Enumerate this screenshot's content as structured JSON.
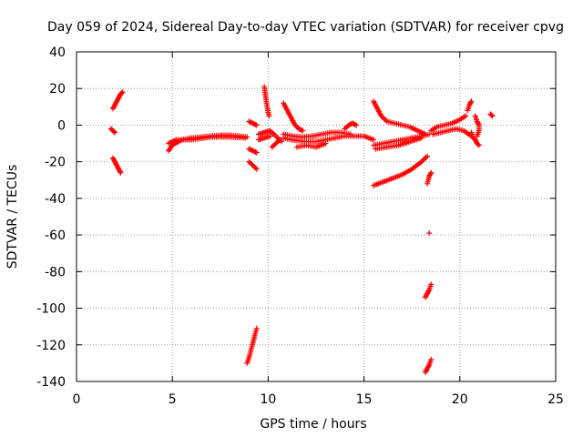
{
  "chart_data": {
    "type": "scatter",
    "title": "Day 059 of 2024, Sidereal Day-to-day VTEC variation (SDTVAR) for receiver cpvg",
    "xlabel": "GPS time / hours",
    "ylabel": "SDTVAR / TECUs",
    "xlim": [
      0,
      25
    ],
    "ylim": [
      -140,
      40
    ],
    "xticks": [
      "0",
      "5",
      "10",
      "15",
      "20",
      "25"
    ],
    "yticks": [
      "40",
      "20",
      "0",
      "-20",
      "-40",
      "-60",
      "-80",
      "-100",
      "-120",
      "-140"
    ],
    "grid": true,
    "marker": "plus",
    "color": "#ff0000",
    "segments": [
      [
        [
          1.8,
          -2
        ],
        [
          1.9,
          -3
        ],
        [
          2.0,
          -4
        ]
      ],
      [
        [
          1.9,
          9
        ],
        [
          2.0,
          11
        ],
        [
          2.1,
          13
        ],
        [
          2.2,
          15
        ],
        [
          2.3,
          17
        ],
        [
          2.4,
          18
        ]
      ],
      [
        [
          1.9,
          -18
        ],
        [
          2.0,
          -20
        ],
        [
          2.1,
          -22
        ],
        [
          2.2,
          -24
        ],
        [
          2.3,
          -26
        ]
      ],
      [
        [
          4.8,
          -14
        ],
        [
          5.0,
          -11
        ],
        [
          5.5,
          -8
        ],
        [
          6.0,
          -7
        ],
        [
          6.5,
          -6.5
        ],
        [
          7.0,
          -6
        ],
        [
          7.5,
          -5.5
        ],
        [
          8.0,
          -5.5
        ],
        [
          8.5,
          -6
        ],
        [
          8.9,
          -6.5
        ]
      ],
      [
        [
          4.8,
          -10
        ],
        [
          5.2,
          -8
        ],
        [
          6.0,
          -8
        ],
        [
          7.0,
          -6.5
        ],
        [
          8.0,
          -6.5
        ],
        [
          8.8,
          -7
        ]
      ],
      [
        [
          9.0,
          -20
        ],
        [
          9.2,
          -22
        ],
        [
          9.4,
          -24
        ]
      ],
      [
        [
          9.0,
          2
        ],
        [
          9.2,
          1
        ],
        [
          9.4,
          0
        ]
      ],
      [
        [
          9.0,
          -13
        ],
        [
          9.2,
          -14
        ],
        [
          9.4,
          -15
        ]
      ],
      [
        [
          8.9,
          -130
        ],
        [
          9.0,
          -127
        ],
        [
          9.1,
          -123
        ],
        [
          9.2,
          -119
        ],
        [
          9.3,
          -115
        ],
        [
          9.4,
          -111
        ]
      ],
      [
        [
          9.5,
          -8
        ],
        [
          9.8,
          -7
        ],
        [
          10.1,
          -6
        ]
      ],
      [
        [
          9.5,
          -5
        ],
        [
          9.8,
          -4
        ],
        [
          10.1,
          -3
        ],
        [
          10.4,
          -6
        ],
        [
          10.7,
          -9
        ]
      ],
      [
        [
          9.8,
          21
        ],
        [
          9.85,
          17
        ],
        [
          9.9,
          13
        ],
        [
          9.95,
          10
        ],
        [
          10.0,
          7
        ],
        [
          10.05,
          5
        ]
      ],
      [
        [
          10.2,
          -12
        ],
        [
          10.4,
          -10
        ],
        [
          10.6,
          -8
        ]
      ],
      [
        [
          10.8,
          12
        ],
        [
          11.0,
          8
        ],
        [
          11.2,
          4
        ],
        [
          11.4,
          0
        ],
        [
          11.6,
          -2
        ],
        [
          11.8,
          -3
        ]
      ],
      [
        [
          10.8,
          -7
        ],
        [
          11.2,
          -8
        ],
        [
          11.6,
          -8.5
        ],
        [
          12.0,
          -9
        ],
        [
          12.5,
          -9
        ],
        [
          13.0,
          -8
        ],
        [
          13.5,
          -7
        ],
        [
          14.0,
          -6
        ],
        [
          14.5,
          -6
        ],
        [
          15.0,
          -6
        ],
        [
          15.5,
          -8
        ]
      ],
      [
        [
          10.8,
          -5
        ],
        [
          11.3,
          -6
        ],
        [
          11.8,
          -6.5
        ],
        [
          12.3,
          -6
        ],
        [
          12.8,
          -5
        ],
        [
          13.3,
          -4
        ],
        [
          13.8,
          -4
        ],
        [
          14.3,
          -5
        ]
      ],
      [
        [
          11.5,
          -12
        ],
        [
          12.0,
          -11
        ],
        [
          12.5,
          -12
        ],
        [
          13.0,
          -10
        ]
      ],
      [
        [
          14.0,
          -2
        ],
        [
          14.2,
          0
        ],
        [
          14.4,
          1
        ],
        [
          14.6,
          0
        ]
      ],
      [
        [
          15.5,
          13
        ],
        [
          15.7,
          9
        ],
        [
          15.9,
          5
        ],
        [
          16.2,
          2
        ],
        [
          16.6,
          1
        ],
        [
          17.0,
          0
        ],
        [
          17.4,
          -1
        ],
        [
          17.8,
          -3
        ],
        [
          18.2,
          -5
        ]
      ],
      [
        [
          15.5,
          -11
        ],
        [
          16.0,
          -10
        ],
        [
          16.5,
          -9
        ],
        [
          17.0,
          -8
        ],
        [
          17.5,
          -7
        ],
        [
          18.0,
          -6
        ],
        [
          18.4,
          -5
        ]
      ],
      [
        [
          15.6,
          -13
        ],
        [
          16.2,
          -12
        ],
        [
          16.8,
          -11
        ],
        [
          17.4,
          -9
        ],
        [
          18.0,
          -7
        ]
      ],
      [
        [
          15.5,
          -33
        ],
        [
          16.0,
          -31
        ],
        [
          16.5,
          -29
        ],
        [
          17.0,
          -27
        ],
        [
          17.5,
          -24
        ],
        [
          18.0,
          -20
        ],
        [
          18.3,
          -17
        ]
      ],
      [
        [
          18.2,
          -94
        ],
        [
          18.3,
          -92
        ],
        [
          18.4,
          -90
        ],
        [
          18.5,
          -87
        ]
      ],
      [
        [
          18.2,
          -135
        ],
        [
          18.3,
          -133
        ],
        [
          18.4,
          -131
        ],
        [
          18.5,
          -128
        ]
      ],
      [
        [
          18.3,
          -32
        ],
        [
          18.4,
          -28
        ],
        [
          18.5,
          -26
        ]
      ],
      [
        [
          18.4,
          -59
        ]
      ],
      [
        [
          18.5,
          -3
        ],
        [
          18.8,
          -1
        ],
        [
          19.2,
          0
        ],
        [
          19.6,
          1
        ],
        [
          20.0,
          3
        ],
        [
          20.3,
          5
        ]
      ],
      [
        [
          18.6,
          -5
        ],
        [
          19.0,
          -4
        ],
        [
          19.4,
          -3
        ],
        [
          19.8,
          -2
        ],
        [
          20.2,
          -3
        ],
        [
          20.6,
          -6
        ]
      ],
      [
        [
          20.4,
          8
        ],
        [
          20.5,
          11
        ],
        [
          20.6,
          13
        ]
      ],
      [
        [
          20.6,
          -4
        ],
        [
          20.7,
          -7
        ],
        [
          20.8,
          -8
        ],
        [
          20.9,
          -10
        ],
        [
          21.0,
          -11
        ]
      ],
      [
        [
          20.8,
          5
        ],
        [
          20.9,
          2
        ],
        [
          21.0,
          0
        ],
        [
          21.0,
          -3
        ],
        [
          20.9,
          -6
        ]
      ],
      [
        [
          21.6,
          6
        ],
        [
          21.7,
          5
        ]
      ]
    ]
  }
}
